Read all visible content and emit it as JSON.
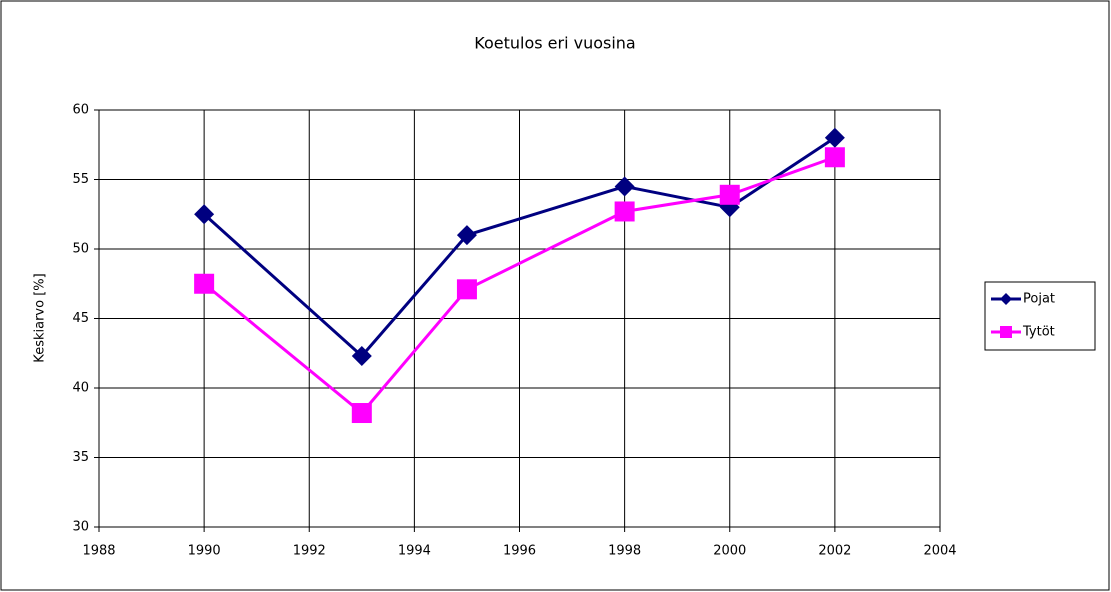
{
  "chart_data": {
    "type": "line",
    "title": "Koetulos eri vuosina",
    "y_label": "Keskiarvo [%]",
    "series": [
      {
        "name": "Pojat",
        "color": "#000080",
        "marker": "diamond",
        "x": [
          1990,
          1993,
          1995,
          1998,
          2000,
          2002
        ],
        "values": [
          52.5,
          42.3,
          51,
          54.5,
          53,
          58
        ]
      },
      {
        "name": "Tytöt",
        "color": "#ff00ff",
        "marker": "square",
        "x": [
          1990,
          1993,
          1995,
          1998,
          2000,
          2002
        ],
        "values": [
          47.5,
          38.2,
          47.1,
          52.7,
          53.9,
          56.6
        ]
      }
    ],
    "xlim": [
      1988,
      2004
    ],
    "xticks": [
      1988,
      1990,
      1992,
      1994,
      1996,
      1998,
      2000,
      2002,
      2004
    ],
    "ylim": [
      30,
      60
    ],
    "yticks": [
      30,
      35,
      40,
      45,
      50,
      55,
      60
    ],
    "grid": true,
    "legend": "right"
  }
}
